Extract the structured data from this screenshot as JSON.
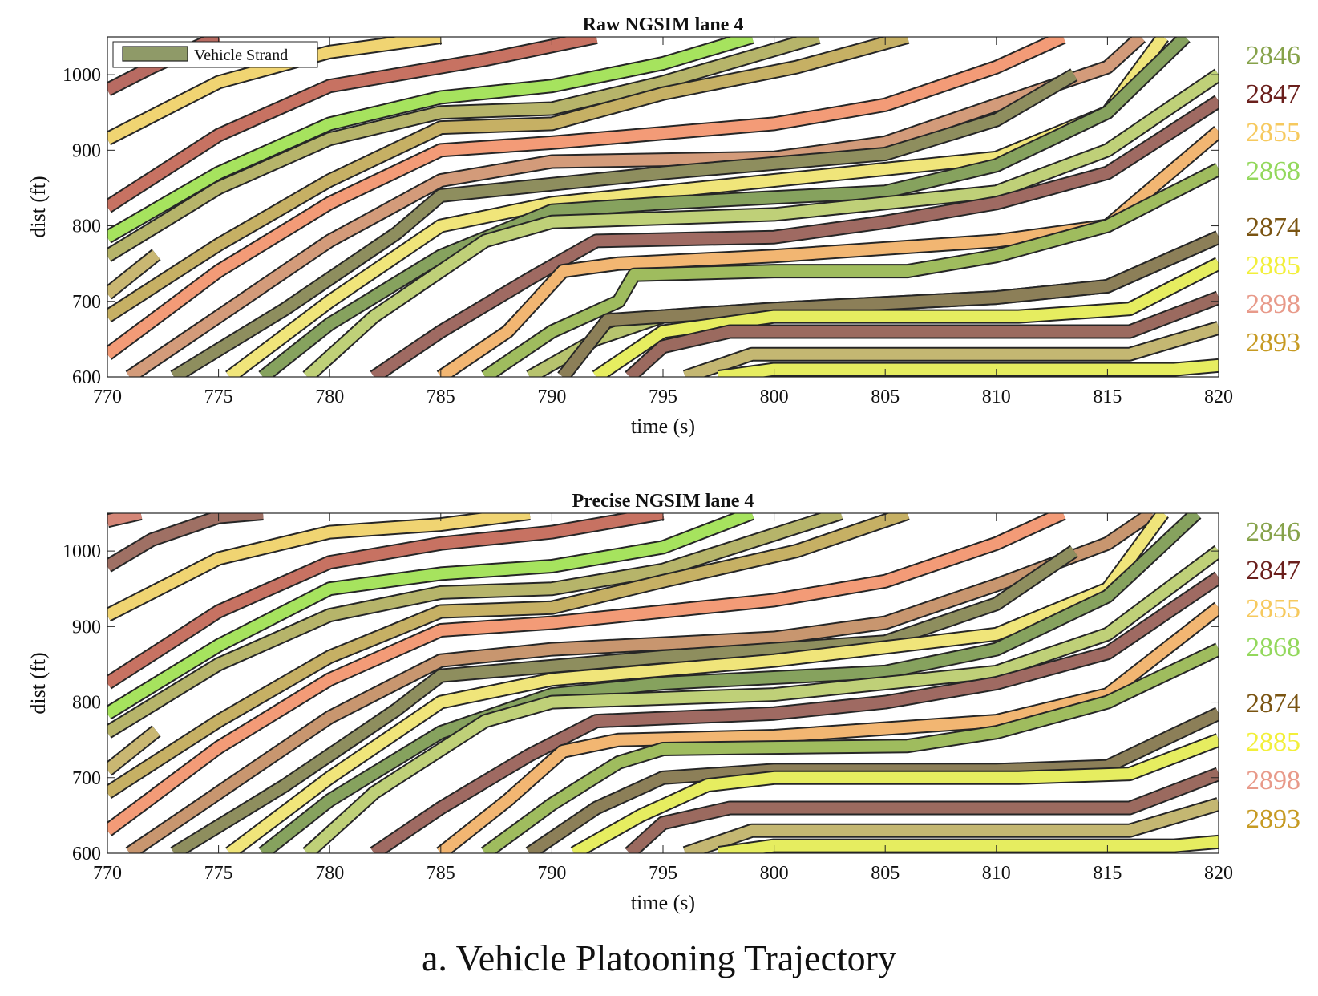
{
  "caption": "a. Vehicle Platooning Trajectory",
  "legend_label": "Vehicle Strand",
  "vehicle_ids": [
    {
      "id": "2846",
      "color": "#86a24a"
    },
    {
      "id": "2847",
      "color": "#6a1f1c"
    },
    {
      "id": "2855",
      "color": "#f6c95e"
    },
    {
      "id": "2868",
      "color": "#93d85c"
    },
    {
      "id": "2874",
      "color": "#7a5412"
    },
    {
      "id": "2885",
      "color": "#f2ef3a"
    },
    {
      "id": "2898",
      "color": "#e89a8a"
    },
    {
      "id": "2893",
      "color": "#c69a22"
    }
  ],
  "chart_data": [
    {
      "type": "line",
      "title": "Raw NGSIM lane 4",
      "xlabel": "time (s)",
      "ylabel": "dist (ft)",
      "xlim": [
        770,
        820
      ],
      "ylim": [
        600,
        1050
      ],
      "xticks": [
        770,
        775,
        780,
        785,
        790,
        795,
        800,
        805,
        810,
        815,
        820
      ],
      "yticks": [
        600,
        700,
        800,
        900,
        1000
      ],
      "legend": "top-left",
      "series": [
        {
          "color": "#b86b62",
          "x": [
            770,
            772,
            775
          ],
          "y": [
            980,
            1010,
            1050
          ]
        },
        {
          "color": "#f0d472",
          "x": [
            770,
            775,
            780,
            785
          ],
          "y": [
            915,
            990,
            1030,
            1050
          ]
        },
        {
          "color": "#c77262",
          "x": [
            770,
            775,
            780,
            787,
            792
          ],
          "y": [
            825,
            920,
            985,
            1020,
            1050
          ]
        },
        {
          "color": "#a6e35e",
          "x": [
            770,
            775,
            780,
            785,
            790,
            795,
            799
          ],
          "y": [
            785,
            870,
            935,
            970,
            985,
            1015,
            1050
          ]
        },
        {
          "color": "#b6b46a",
          "x": [
            770,
            775,
            780,
            785,
            790,
            795,
            802
          ],
          "y": [
            760,
            850,
            915,
            950,
            955,
            990,
            1050
          ]
        },
        {
          "color": "#c9b772",
          "x": [
            770,
            772.2
          ],
          "y": [
            710,
            762
          ]
        },
        {
          "color": "#c6b064",
          "x": [
            770,
            775,
            780,
            785,
            790,
            795,
            801,
            806
          ],
          "y": [
            680,
            775,
            860,
            930,
            935,
            975,
            1010,
            1050
          ]
        },
        {
          "color": "#f39b77",
          "x": [
            770,
            775,
            780,
            785,
            790,
            800,
            805,
            810,
            813
          ],
          "y": [
            630,
            740,
            830,
            900,
            910,
            935,
            960,
            1010,
            1050
          ]
        },
        {
          "color": "#d39b7a",
          "x": [
            771,
            775,
            780,
            785,
            790,
            800,
            805,
            810,
            815,
            816.5
          ],
          "y": [
            600,
            680,
            780,
            860,
            885,
            890,
            910,
            960,
            1010,
            1050
          ]
        },
        {
          "color": "#8e8e5e",
          "x": [
            773,
            778,
            783,
            785,
            795,
            805,
            810,
            813.5
          ],
          "y": [
            600,
            690,
            790,
            840,
            870,
            895,
            940,
            1000
          ]
        },
        {
          "color": "#f0e57a",
          "x": [
            775.5,
            780,
            785,
            790,
            800,
            810,
            815,
            817.5
          ],
          "y": [
            600,
            700,
            800,
            830,
            860,
            890,
            950,
            1050
          ]
        },
        {
          "color": "#86a25e",
          "x": [
            777,
            780,
            785,
            790,
            795,
            805,
            810,
            815,
            818.5
          ],
          "y": [
            600,
            670,
            760,
            820,
            830,
            845,
            880,
            950,
            1050
          ]
        },
        {
          "color": "#bfd078",
          "x": [
            779,
            782,
            787,
            790,
            800,
            810,
            815,
            820
          ],
          "y": [
            600,
            680,
            780,
            805,
            815,
            845,
            900,
            1000
          ]
        },
        {
          "color": "#9f6a62",
          "x": [
            782,
            785,
            789,
            792,
            800,
            805,
            810,
            815,
            820
          ],
          "y": [
            600,
            660,
            730,
            780,
            785,
            805,
            830,
            870,
            965
          ]
        },
        {
          "color": "#f2b672",
          "x": [
            785,
            788,
            790.5,
            793,
            800,
            810,
            815,
            820
          ],
          "y": [
            600,
            660,
            740,
            750,
            760,
            780,
            800,
            925
          ]
        },
        {
          "color": "#9fbc5e",
          "x": [
            787,
            790,
            793,
            793.7,
            800,
            806,
            810,
            815,
            820
          ],
          "y": [
            600,
            660,
            700,
            735,
            740,
            740,
            760,
            800,
            875
          ]
        },
        {
          "color": "#b7c36e",
          "x": [
            789,
            792,
            795,
            800,
            810,
            815,
            820
          ],
          "y": [
            600,
            650,
            680,
            690,
            705,
            720,
            785
          ]
        },
        {
          "color": "#8c7f58",
          "x": [
            790.5,
            792.5,
            800,
            810,
            815,
            820
          ],
          "y": [
            600,
            675,
            690,
            705,
            720,
            785
          ]
        },
        {
          "color": "#e6ed60",
          "x": [
            792,
            795,
            800,
            811,
            816,
            820
          ],
          "y": [
            600,
            660,
            680,
            680,
            690,
            750
          ]
        },
        {
          "color": "#9b6a5f",
          "x": [
            793.5,
            795,
            798,
            816,
            820
          ],
          "y": [
            600,
            640,
            660,
            660,
            705
          ]
        },
        {
          "color": "#c4b772",
          "x": [
            796,
            799,
            816,
            820
          ],
          "y": [
            600,
            630,
            630,
            665
          ]
        },
        {
          "color": "#e6ed60",
          "x": [
            797.5,
            800,
            818,
            820
          ],
          "y": [
            600,
            610,
            610,
            615
          ]
        }
      ]
    },
    {
      "type": "line",
      "title": "Precise NGSIM lane 4",
      "xlabel": "time (s)",
      "ylabel": "dist (ft)",
      "xlim": [
        770,
        820
      ],
      "ylim": [
        600,
        1050
      ],
      "xticks": [
        770,
        775,
        780,
        785,
        790,
        795,
        800,
        805,
        810,
        815,
        820
      ],
      "yticks": [
        600,
        700,
        800,
        900,
        1000
      ],
      "series": [
        {
          "color": "#d48677",
          "x": [
            770,
            771.5
          ],
          "y": [
            1040,
            1050
          ]
        },
        {
          "color": "#9f7064",
          "x": [
            770,
            772,
            775,
            777
          ],
          "y": [
            980,
            1015,
            1045,
            1050
          ]
        },
        {
          "color": "#f0d472",
          "x": [
            770,
            775,
            780,
            785,
            789
          ],
          "y": [
            915,
            990,
            1025,
            1035,
            1050
          ]
        },
        {
          "color": "#c77262",
          "x": [
            770,
            775,
            780,
            785,
            790,
            795
          ],
          "y": [
            825,
            920,
            985,
            1010,
            1025,
            1050
          ]
        },
        {
          "color": "#a6e35e",
          "x": [
            770,
            775,
            780,
            785,
            790,
            795,
            799
          ],
          "y": [
            785,
            875,
            950,
            970,
            980,
            1005,
            1050
          ]
        },
        {
          "color": "#b6b46a",
          "x": [
            770,
            775,
            780,
            785,
            790,
            795,
            803
          ],
          "y": [
            760,
            850,
            915,
            945,
            950,
            975,
            1050
          ]
        },
        {
          "color": "#c9b772",
          "x": [
            770,
            772.2
          ],
          "y": [
            710,
            762
          ]
        },
        {
          "color": "#c6b064",
          "x": [
            770,
            775,
            780,
            785,
            790,
            795,
            801,
            806
          ],
          "y": [
            680,
            775,
            860,
            920,
            925,
            960,
            1000,
            1050
          ]
        },
        {
          "color": "#f39b77",
          "x": [
            770,
            775,
            780,
            785,
            790,
            800,
            805,
            810,
            813
          ],
          "y": [
            630,
            740,
            830,
            895,
            905,
            935,
            960,
            1010,
            1050
          ]
        },
        {
          "color": "#c8966f",
          "x": [
            771,
            775,
            780,
            785,
            790,
            800,
            805,
            810,
            815,
            817
          ],
          "y": [
            600,
            680,
            780,
            855,
            870,
            885,
            905,
            955,
            1010,
            1050
          ]
        },
        {
          "color": "#8e8e5e",
          "x": [
            773,
            778,
            783,
            785,
            795,
            805,
            810,
            813.5
          ],
          "y": [
            600,
            690,
            790,
            835,
            860,
            880,
            930,
            1000
          ]
        },
        {
          "color": "#f0e57a",
          "x": [
            775.5,
            780,
            785,
            790,
            800,
            810,
            815,
            817.5
          ],
          "y": [
            600,
            700,
            800,
            830,
            855,
            890,
            950,
            1050
          ]
        },
        {
          "color": "#86a25e",
          "x": [
            777,
            780,
            785,
            790,
            795,
            805,
            810,
            815,
            819
          ],
          "y": [
            600,
            670,
            760,
            810,
            825,
            840,
            870,
            940,
            1050
          ]
        },
        {
          "color": "#bfd078",
          "x": [
            779,
            782,
            787,
            790,
            800,
            810,
            815,
            820
          ],
          "y": [
            600,
            680,
            775,
            800,
            810,
            840,
            890,
            1000
          ]
        },
        {
          "color": "#9f6a62",
          "x": [
            782,
            785,
            789,
            792,
            800,
            805,
            810,
            815,
            820
          ],
          "y": [
            600,
            660,
            730,
            775,
            785,
            800,
            825,
            865,
            965
          ]
        },
        {
          "color": "#f2b672",
          "x": [
            785,
            788,
            790.5,
            793,
            800,
            810,
            815,
            820
          ],
          "y": [
            600,
            670,
            735,
            750,
            755,
            775,
            810,
            925
          ]
        },
        {
          "color": "#9fbc5e",
          "x": [
            787,
            790,
            793,
            795,
            800,
            806,
            810,
            815,
            820
          ],
          "y": [
            600,
            665,
            720,
            738,
            740,
            742,
            760,
            800,
            870
          ]
        },
        {
          "color": "#8c7f58",
          "x": [
            789,
            792,
            795,
            800,
            810,
            815,
            820
          ],
          "y": [
            600,
            660,
            700,
            710,
            710,
            715,
            785
          ]
        },
        {
          "color": "#e6ed60",
          "x": [
            791,
            794,
            797,
            800,
            811,
            816,
            820
          ],
          "y": [
            600,
            650,
            690,
            700,
            700,
            705,
            750
          ]
        },
        {
          "color": "#9b6a5f",
          "x": [
            793.5,
            795,
            798,
            816,
            820
          ],
          "y": [
            600,
            640,
            660,
            660,
            705
          ]
        },
        {
          "color": "#c4b772",
          "x": [
            796,
            799,
            816,
            820
          ],
          "y": [
            600,
            630,
            630,
            665
          ]
        },
        {
          "color": "#e6ed60",
          "x": [
            797.5,
            800,
            818,
            820
          ],
          "y": [
            600,
            610,
            610,
            615
          ]
        }
      ]
    }
  ]
}
